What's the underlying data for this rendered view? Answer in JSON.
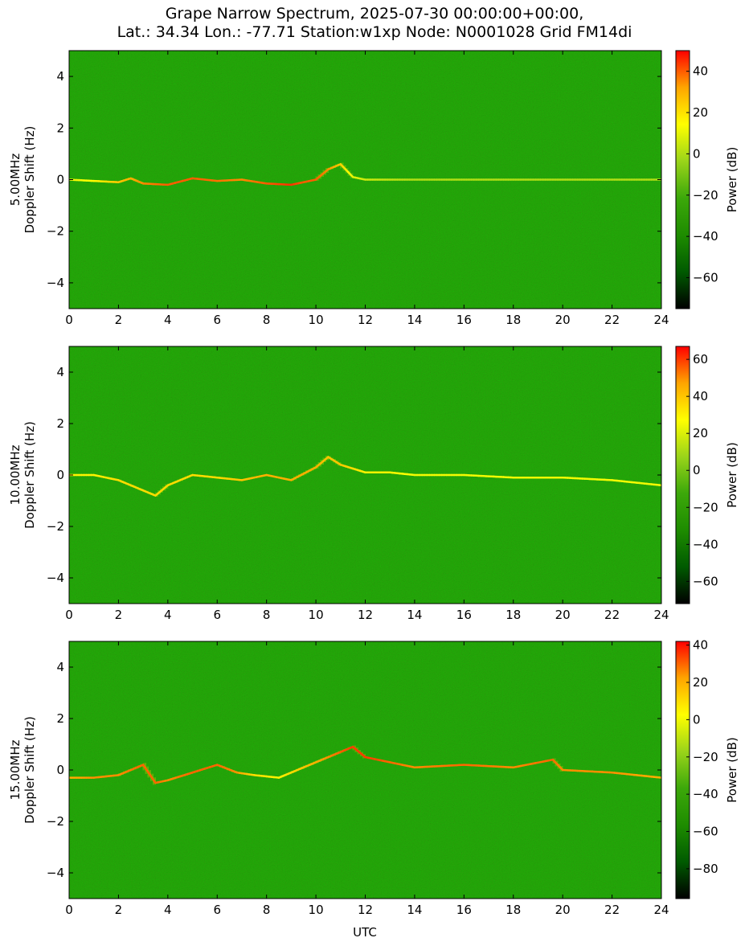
{
  "title_line1": "Grape Narrow Spectrum, 2025-07-30 00:00:00+00:00,",
  "title_line2": "Lat.: 34.34 Lon.: -77.71 Station:w1xp Node: N0001028 Grid FM14di",
  "xlabel": "UTC",
  "colors": {
    "colormap": [
      "#000000",
      "#005a00",
      "#1e8c00",
      "#3ca80a",
      "#9ad41a",
      "#ffff00",
      "#ffa500",
      "#ff0000"
    ],
    "axis": "#000000"
  },
  "chart_data": [
    {
      "type": "heatmap",
      "frequency_label": "5.00MHz",
      "ylabel": "Doppler Shift (Hz)",
      "x_ticks": [
        0,
        2,
        4,
        6,
        8,
        10,
        12,
        14,
        16,
        18,
        20,
        22,
        24
      ],
      "y_ticks": [
        4,
        2,
        0,
        -2,
        -4
      ],
      "xlim": [
        0,
        24
      ],
      "ylim": [
        -5,
        5
      ],
      "colorbar_label": "Power (dB)",
      "colorbar_ticks": [
        40,
        20,
        0,
        -20,
        -40,
        -60
      ],
      "colorbar_range": [
        -75,
        50
      ],
      "doppler_trace": {
        "utc": [
          0,
          1,
          2,
          2.5,
          3,
          4,
          5,
          6,
          7,
          8,
          9,
          9.5,
          10,
          10.5,
          11,
          11.5,
          12,
          14,
          16,
          18,
          20,
          22,
          24
        ],
        "doppler_hz": [
          0,
          -0.05,
          -0.1,
          0.05,
          -0.15,
          -0.2,
          0.05,
          -0.05,
          0.0,
          -0.15,
          -0.2,
          -0.1,
          0.0,
          0.4,
          0.6,
          0.1,
          0.0,
          0.0,
          0.0,
          0.0,
          0.0,
          0.0,
          0.0
        ],
        "peak_power_db": [
          10,
          15,
          25,
          30,
          35,
          40,
          40,
          38,
          35,
          40,
          45,
          40,
          40,
          35,
          25,
          10,
          5,
          0,
          0,
          0,
          0,
          0,
          0
        ]
      }
    },
    {
      "type": "heatmap",
      "frequency_label": "10.00MHz",
      "ylabel": "Doppler Shift (Hz)",
      "x_ticks": [
        0,
        2,
        4,
        6,
        8,
        10,
        12,
        14,
        16,
        18,
        20,
        22,
        24
      ],
      "y_ticks": [
        4,
        2,
        0,
        -2,
        -4
      ],
      "xlim": [
        0,
        24
      ],
      "ylim": [
        -5,
        5
      ],
      "colorbar_label": "Power (dB)",
      "colorbar_ticks": [
        60,
        40,
        20,
        0,
        -20,
        -40,
        -60
      ],
      "colorbar_range": [
        -72,
        67
      ],
      "doppler_trace": {
        "utc": [
          0,
          1,
          2,
          3,
          3.5,
          4,
          5,
          6,
          7,
          8,
          9,
          10,
          10.5,
          11,
          12,
          13,
          14,
          16,
          18,
          20,
          22,
          23,
          24
        ],
        "doppler_hz": [
          0,
          0,
          -0.2,
          -0.6,
          -0.8,
          -0.4,
          0,
          -0.1,
          -0.2,
          0,
          -0.2,
          0.3,
          0.7,
          0.4,
          0.1,
          0.1,
          0.0,
          0.0,
          -0.1,
          -0.1,
          -0.2,
          -0.3,
          -0.4
        ],
        "peak_power_db": [
          30,
          30,
          35,
          35,
          35,
          35,
          35,
          35,
          40,
          45,
          45,
          45,
          40,
          40,
          30,
          30,
          25,
          25,
          25,
          25,
          25,
          25,
          25
        ]
      }
    },
    {
      "type": "heatmap",
      "frequency_label": "15.00MHz",
      "ylabel": "Doppler Shift (Hz)",
      "x_ticks": [
        0,
        2,
        4,
        6,
        8,
        10,
        12,
        14,
        16,
        18,
        20,
        22,
        24
      ],
      "y_ticks": [
        4,
        2,
        0,
        -2,
        -4
      ],
      "xlim": [
        0,
        24
      ],
      "ylim": [
        -5,
        5
      ],
      "colorbar_label": "Power (dB)",
      "colorbar_ticks": [
        40,
        20,
        0,
        -20,
        -40,
        -60,
        -80
      ],
      "colorbar_range": [
        -96,
        42
      ],
      "doppler_trace": {
        "utc": [
          0,
          1,
          2,
          3,
          3.5,
          4,
          5,
          6,
          6.8,
          7.5,
          8.5,
          11.5,
          12,
          13,
          14,
          16,
          18,
          19.6,
          20,
          22,
          24
        ],
        "doppler_hz": [
          -0.3,
          -0.3,
          -0.2,
          0.2,
          -0.5,
          -0.4,
          -0.1,
          0.2,
          -0.1,
          -0.2,
          -0.3,
          0.9,
          0.5,
          0.3,
          0.1,
          0.2,
          0.1,
          0.4,
          0.0,
          -0.1,
          -0.3
        ],
        "peak_power_db": [
          20,
          25,
          25,
          30,
          30,
          25,
          30,
          30,
          25,
          10,
          5,
          35,
          35,
          30,
          25,
          30,
          25,
          30,
          25,
          25,
          20
        ]
      }
    }
  ]
}
